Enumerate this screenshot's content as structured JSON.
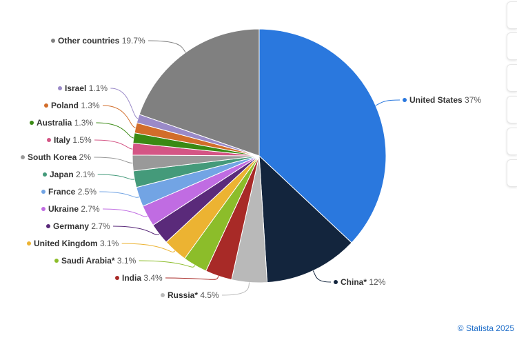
{
  "chart_data": {
    "type": "pie",
    "slices": [
      {
        "name": "United States",
        "value": 37,
        "label": "37%",
        "color": "#2a78de"
      },
      {
        "name": "China*",
        "value": 12,
        "label": "12%",
        "color": "#13253d"
      },
      {
        "name": "Russia*",
        "value": 4.5,
        "label": "4.5%",
        "color": "#b9b9b9"
      },
      {
        "name": "India",
        "value": 3.4,
        "label": "3.4%",
        "color": "#a82a27"
      },
      {
        "name": "Saudi Arabia*",
        "value": 3.1,
        "label": "3.1%",
        "color": "#8cbd2a"
      },
      {
        "name": "United Kingdom",
        "value": 3.1,
        "label": "3.1%",
        "color": "#ecb332"
      },
      {
        "name": "Germany",
        "value": 2.7,
        "label": "2.7%",
        "color": "#5a2a7a"
      },
      {
        "name": "Ukraine",
        "value": 2.7,
        "label": "2.7%",
        "color": "#c06ce2"
      },
      {
        "name": "France",
        "value": 2.5,
        "label": "2.5%",
        "color": "#72a4e4"
      },
      {
        "name": "Japan",
        "value": 2.1,
        "label": "2.1%",
        "color": "#449a7a"
      },
      {
        "name": "South Korea",
        "value": 2,
        "label": "2%",
        "color": "#999999"
      },
      {
        "name": "Italy",
        "value": 1.5,
        "label": "1.5%",
        "color": "#d45585"
      },
      {
        "name": "Australia",
        "value": 1.3,
        "label": "1.3%",
        "color": "#3a8a14"
      },
      {
        "name": "Poland",
        "value": 1.3,
        "label": "1.3%",
        "color": "#d26d2a"
      },
      {
        "name": "Israel",
        "value": 1.1,
        "label": "1.1%",
        "color": "#9a8ac8"
      },
      {
        "name": "Other countries",
        "value": 19.7,
        "label": "19.7%",
        "color": "#808080"
      }
    ]
  },
  "credits": "© Statista 2025",
  "toolbar": {
    "buttons": [
      "button-1",
      "button-2",
      "button-3",
      "button-4",
      "button-5",
      "button-6"
    ]
  }
}
